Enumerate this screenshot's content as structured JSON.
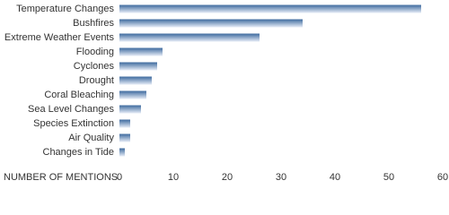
{
  "chart_data": {
    "type": "bar",
    "orientation": "horizontal",
    "x_label": "NUMBER OF MENTIONS",
    "categories": [
      "Temperature Changes",
      "Bushfires",
      "Extreme Weather Events",
      "Flooding",
      "Cyclones",
      "Drought",
      "Coral Bleaching",
      "Sea Level Changes",
      "Species Extinction",
      "Air Quality",
      "Changes in Tide"
    ],
    "values": [
      56,
      34,
      26,
      8,
      7,
      6,
      5,
      4,
      2,
      2,
      1
    ],
    "color": "#3d6a9e",
    "xlim": [
      0,
      60
    ],
    "xticks": [
      0,
      10,
      20,
      30,
      40,
      50,
      60
    ],
    "grid": false
  }
}
